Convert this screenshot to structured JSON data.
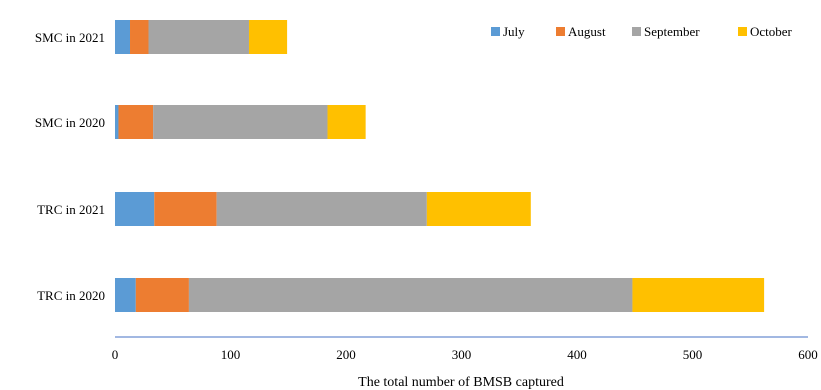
{
  "chart_data": {
    "type": "bar",
    "orientation": "horizontal",
    "stacked": true,
    "categories": [
      "SMC in 2021",
      "SMC in 2020",
      "TRC in 2021",
      "TRC in 2020"
    ],
    "series": [
      {
        "name": "July",
        "color": "#5B9BD5",
        "values": [
          13,
          3,
          34,
          18
        ]
      },
      {
        "name": "August",
        "color": "#ED7D31",
        "values": [
          16,
          30,
          54,
          46
        ]
      },
      {
        "name": "September",
        "color": "#A5A5A5",
        "values": [
          87,
          151,
          182,
          384
        ]
      },
      {
        "name": "October",
        "color": "#FFC000",
        "values": [
          33,
          33,
          90,
          114
        ]
      }
    ],
    "xlabel": "The total number of BMSB captured",
    "ylabel": "",
    "xlim": [
      0,
      600
    ],
    "xticks": [
      "0",
      "100",
      "200",
      "300",
      "400",
      "500",
      "600"
    ],
    "grid": false,
    "legend_position": "top-right"
  }
}
